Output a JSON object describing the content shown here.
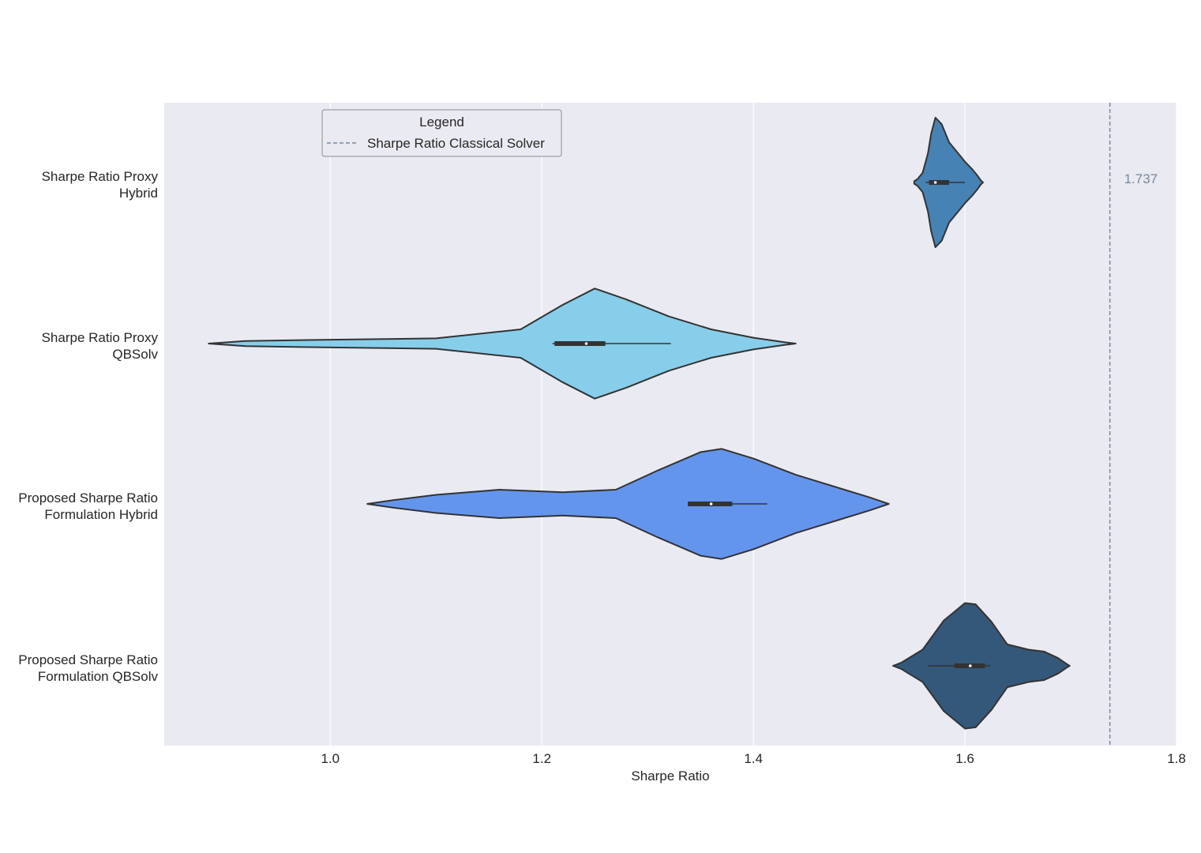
{
  "chart_data": {
    "type": "violin",
    "orientation": "horizontal",
    "xlabel": "Sharpe Ratio",
    "xlim": [
      0.843,
      1.8
    ],
    "xticks": [
      "1.0",
      "1.2",
      "1.4",
      "1.6",
      "1.8"
    ],
    "xtick_values": [
      1.0,
      1.2,
      1.4,
      1.6,
      1.8
    ],
    "grid": true,
    "categories": [
      [
        "Sharpe Ratio Proxy",
        "Hybrid"
      ],
      [
        "Sharpe Ratio Proxy",
        "QBSolv"
      ],
      [
        "Proposed Sharpe Ratio",
        "Formulation Hybrid"
      ],
      [
        "Proposed Sharpe Ratio",
        "Formulation QBSolv"
      ]
    ],
    "series": [
      {
        "color": "#4682b4",
        "median": 1.572,
        "q1": 1.566,
        "q3": 1.585,
        "whisker_low": 1.563,
        "whisker_high": 1.6,
        "density": [
          [
            1.552,
            0.02
          ],
          [
            1.555,
            0.05
          ],
          [
            1.56,
            0.15
          ],
          [
            1.565,
            0.45
          ],
          [
            1.568,
            0.75
          ],
          [
            1.572,
            1.0
          ],
          [
            1.578,
            0.9
          ],
          [
            1.585,
            0.62
          ],
          [
            1.592,
            0.48
          ],
          [
            1.6,
            0.32
          ],
          [
            1.607,
            0.2
          ],
          [
            1.612,
            0.1
          ],
          [
            1.615,
            0.03
          ],
          [
            1.617,
            0.0
          ]
        ]
      },
      {
        "color": "#87ceeb",
        "median": 1.242,
        "q1": 1.212,
        "q3": 1.26,
        "whisker_low": 1.21,
        "whisker_high": 1.322,
        "density": [
          [
            0.885,
            0.0
          ],
          [
            0.92,
            0.04
          ],
          [
            1.0,
            0.06
          ],
          [
            1.1,
            0.08
          ],
          [
            1.18,
            0.22
          ],
          [
            1.22,
            0.6
          ],
          [
            1.25,
            0.85
          ],
          [
            1.28,
            0.68
          ],
          [
            1.32,
            0.42
          ],
          [
            1.36,
            0.22
          ],
          [
            1.4,
            0.09
          ],
          [
            1.43,
            0.02
          ],
          [
            1.44,
            0.0
          ]
        ]
      },
      {
        "color": "#6495ed",
        "median": 1.36,
        "q1": 1.338,
        "q3": 1.38,
        "whisker_low": 1.338,
        "whisker_high": 1.413,
        "density": [
          [
            1.035,
            0.0
          ],
          [
            1.06,
            0.06
          ],
          [
            1.1,
            0.14
          ],
          [
            1.16,
            0.22
          ],
          [
            1.22,
            0.18
          ],
          [
            1.27,
            0.22
          ],
          [
            1.31,
            0.52
          ],
          [
            1.35,
            0.8
          ],
          [
            1.37,
            0.85
          ],
          [
            1.4,
            0.7
          ],
          [
            1.44,
            0.45
          ],
          [
            1.48,
            0.25
          ],
          [
            1.51,
            0.1
          ],
          [
            1.528,
            0.0
          ]
        ]
      },
      {
        "color": "#34587a",
        "median": 1.605,
        "q1": 1.59,
        "q3": 1.619,
        "whisker_low": 1.565,
        "whisker_high": 1.624,
        "density": [
          [
            1.532,
            0.0
          ],
          [
            1.54,
            0.05
          ],
          [
            1.56,
            0.25
          ],
          [
            1.58,
            0.7
          ],
          [
            1.6,
            0.97
          ],
          [
            1.61,
            0.95
          ],
          [
            1.625,
            0.68
          ],
          [
            1.64,
            0.33
          ],
          [
            1.66,
            0.25
          ],
          [
            1.675,
            0.22
          ],
          [
            1.688,
            0.12
          ],
          [
            1.697,
            0.02
          ],
          [
            1.699,
            0.0
          ]
        ]
      }
    ],
    "reference_line": {
      "value": 1.737,
      "label": "1.737",
      "color": "#778899",
      "style": "dashed"
    },
    "legend": {
      "title": "Legend",
      "position": "upper-left",
      "entries": [
        {
          "label": "Sharpe Ratio Classical Solver",
          "color": "#778899",
          "style": "dashed"
        }
      ]
    },
    "colors": {
      "plot_background": "#eaeaf2",
      "grid": "#ffffff",
      "violin_edge": "#333333"
    }
  }
}
